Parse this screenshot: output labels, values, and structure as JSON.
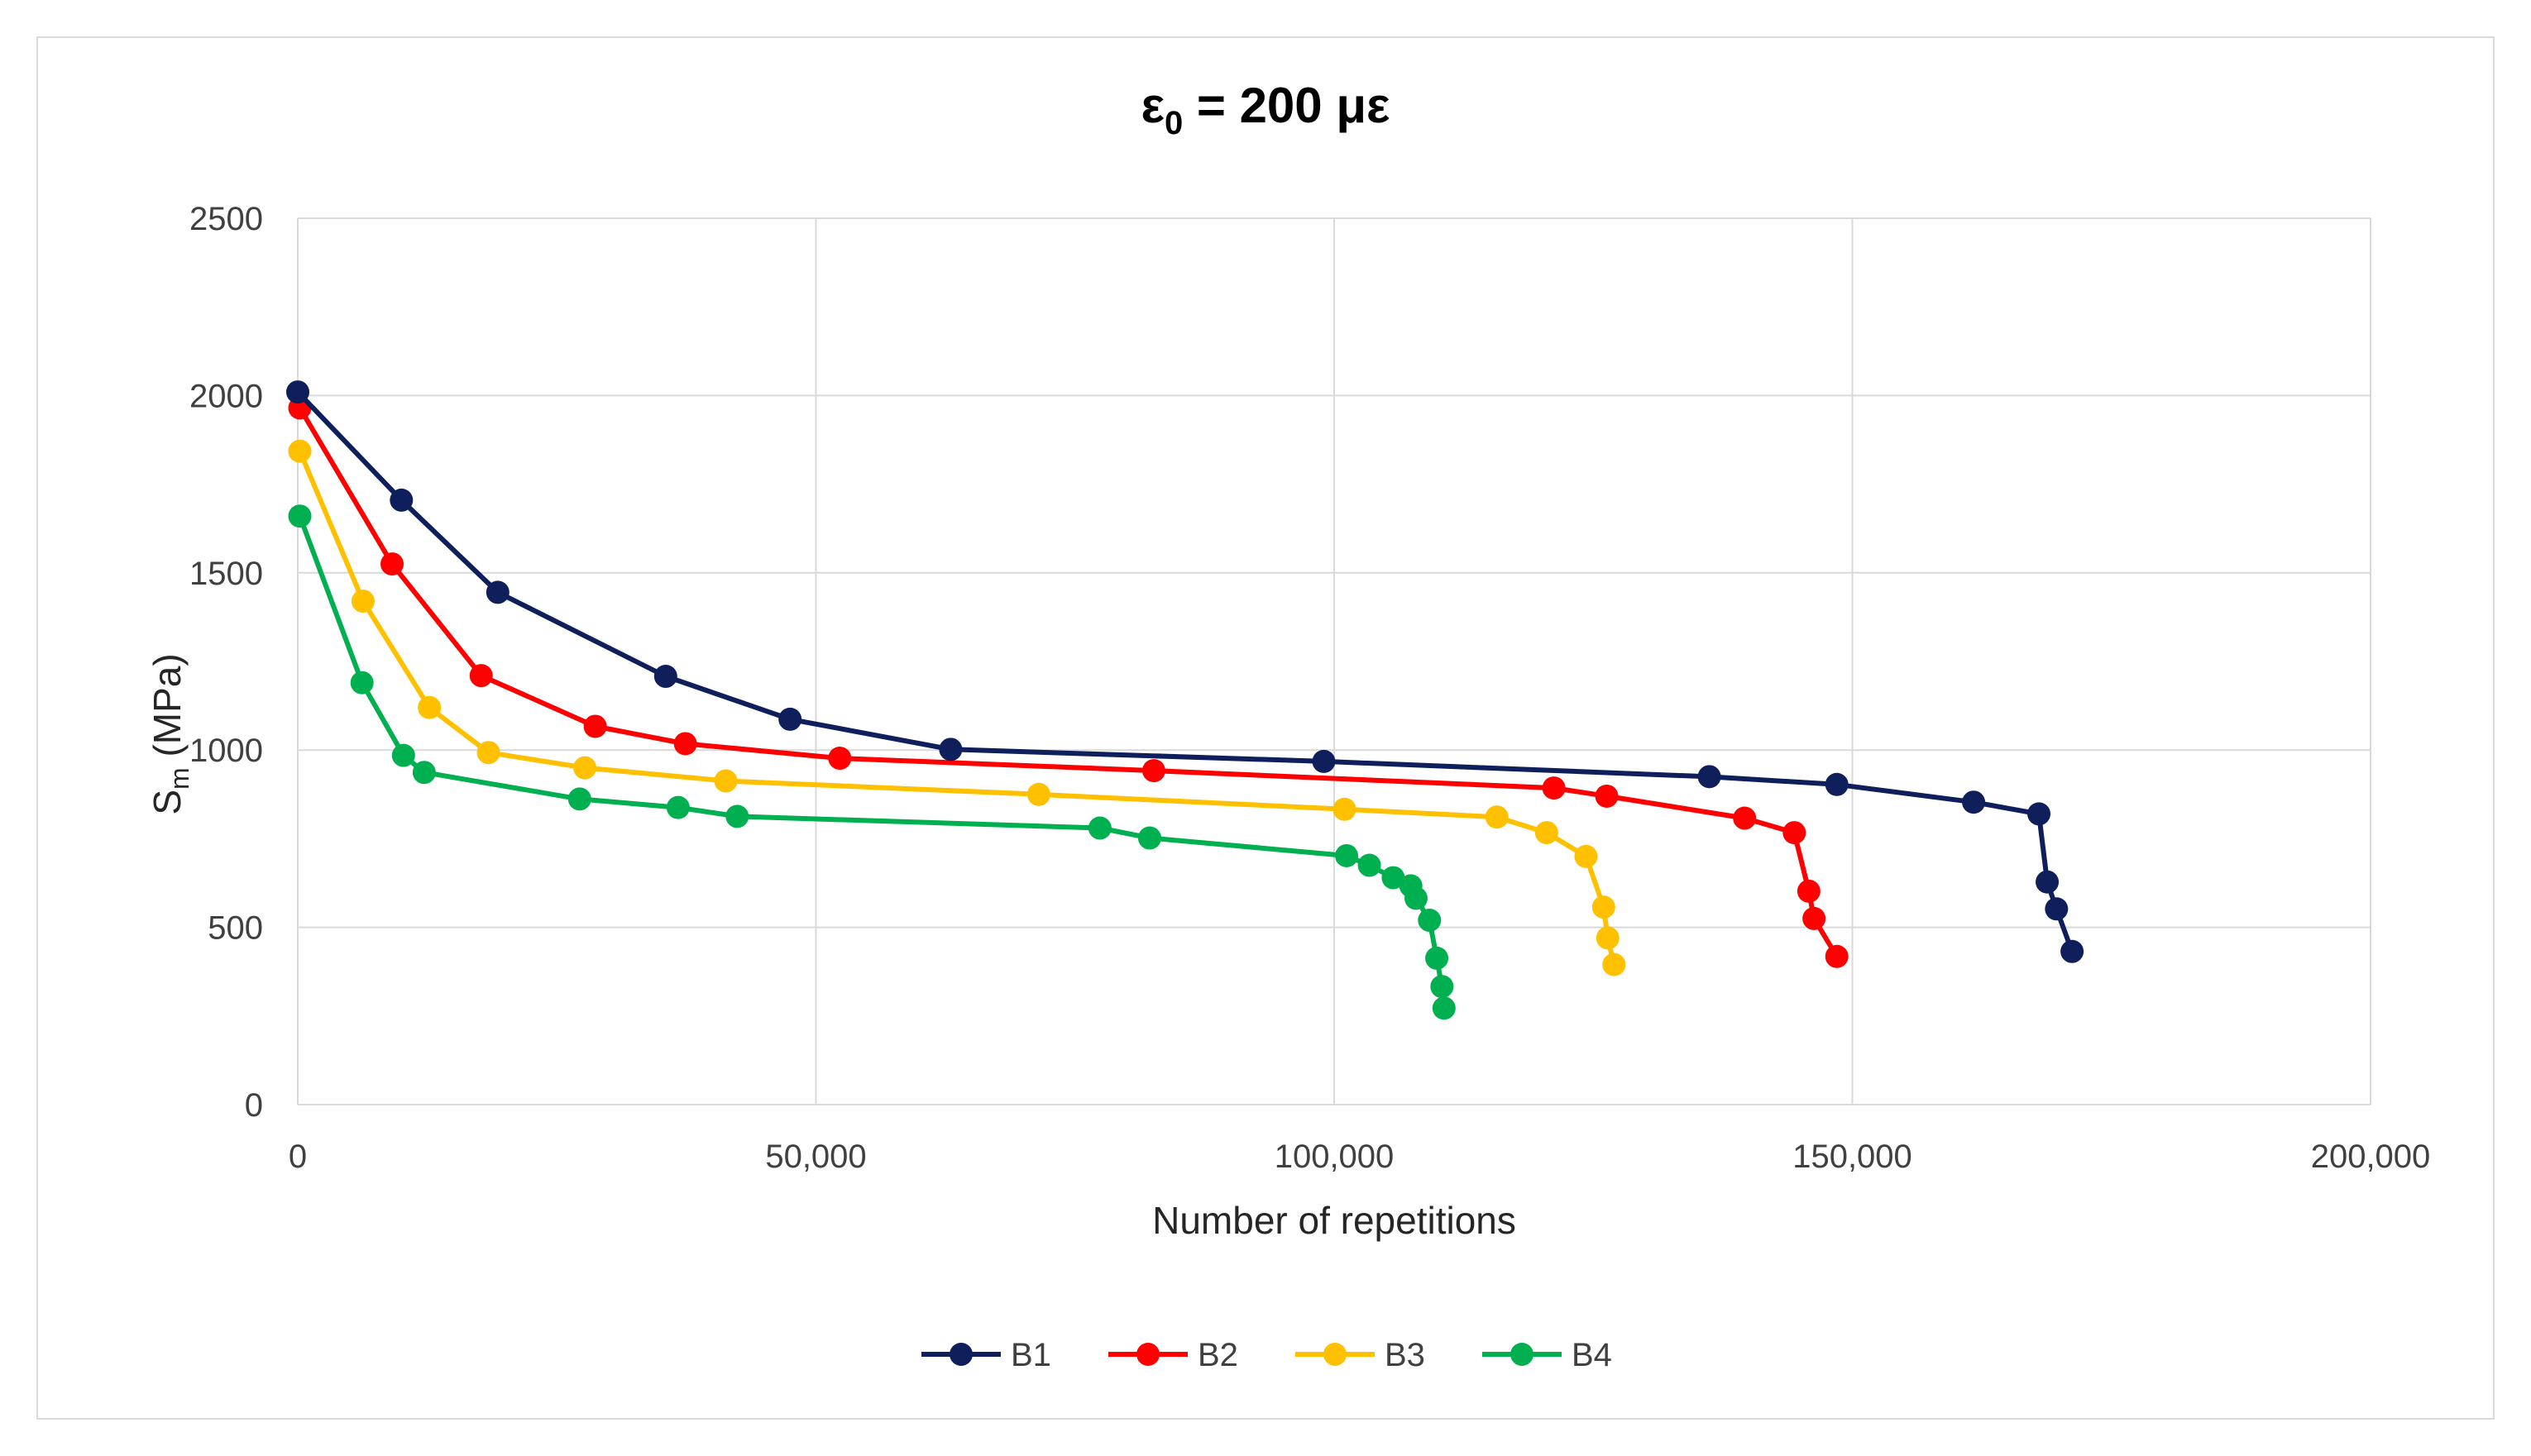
{
  "chart_data": {
    "type": "line",
    "title": {
      "symbol": "ε",
      "subscript": "0",
      "rest": " = 200 με"
    },
    "xlabel": "Number of repetitions",
    "ylabel": {
      "main": "S",
      "subscript": "m",
      "rest": " (MPa)"
    },
    "xlim": [
      0,
      200000
    ],
    "ylim": [
      0,
      2500
    ],
    "xticks": [
      {
        "value": 0,
        "label": "0"
      },
      {
        "value": 50000,
        "label": "50,000"
      },
      {
        "value": 100000,
        "label": "100,000"
      },
      {
        "value": 150000,
        "label": "150,000"
      },
      {
        "value": 200000,
        "label": "200,000"
      }
    ],
    "yticks": [
      {
        "value": 0,
        "label": "0"
      },
      {
        "value": 500,
        "label": "500"
      },
      {
        "value": 1000,
        "label": "1000"
      },
      {
        "value": 1500,
        "label": "1500"
      },
      {
        "value": 2000,
        "label": "2000"
      },
      {
        "value": 2500,
        "label": "2500"
      }
    ],
    "grid": true,
    "legend_position": "bottom",
    "series": [
      {
        "name": "B1",
        "color": "#0f1f5c",
        "points": [
          [
            0,
            2010
          ],
          [
            10000,
            1705
          ],
          [
            19300,
            1445
          ],
          [
            35500,
            1208
          ],
          [
            47500,
            1087
          ],
          [
            63000,
            1002
          ],
          [
            99000,
            968
          ],
          [
            136200,
            925
          ],
          [
            148500,
            903
          ],
          [
            161700,
            853
          ],
          [
            168000,
            820
          ],
          [
            168800,
            628
          ],
          [
            169700,
            552
          ],
          [
            171200,
            432
          ]
        ]
      },
      {
        "name": "B2",
        "color": "#ff0000",
        "points": [
          [
            200,
            1965
          ],
          [
            9100,
            1525
          ],
          [
            17700,
            1210
          ],
          [
            28700,
            1067
          ],
          [
            37400,
            1018
          ],
          [
            52300,
            977
          ],
          [
            82600,
            942
          ],
          [
            121200,
            893
          ],
          [
            126300,
            870
          ],
          [
            139600,
            808
          ],
          [
            144400,
            767
          ],
          [
            145800,
            602
          ],
          [
            146300,
            525
          ],
          [
            148500,
            418
          ]
        ]
      },
      {
        "name": "B3",
        "color": "#ffc000",
        "points": [
          [
            200,
            1843
          ],
          [
            6300,
            1420
          ],
          [
            12700,
            1120
          ],
          [
            18400,
            993
          ],
          [
            27700,
            950
          ],
          [
            41300,
            913
          ],
          [
            71500,
            875
          ],
          [
            101000,
            833
          ],
          [
            115700,
            811
          ],
          [
            120500,
            767
          ],
          [
            124300,
            700
          ],
          [
            126000,
            557
          ],
          [
            126400,
            470
          ],
          [
            127000,
            395
          ]
        ]
      },
      {
        "name": "B4",
        "color": "#00b050",
        "points": [
          [
            200,
            1660
          ],
          [
            6200,
            1190
          ],
          [
            10200,
            985
          ],
          [
            12200,
            937
          ],
          [
            27200,
            862
          ],
          [
            36700,
            838
          ],
          [
            42400,
            813
          ],
          [
            77400,
            780
          ],
          [
            82200,
            752
          ],
          [
            101200,
            702
          ],
          [
            103400,
            675
          ],
          [
            105700,
            640
          ],
          [
            107400,
            617
          ],
          [
            107900,
            582
          ],
          [
            109200,
            520
          ],
          [
            109900,
            413
          ],
          [
            110400,
            333
          ],
          [
            110600,
            272
          ]
        ]
      }
    ]
  }
}
